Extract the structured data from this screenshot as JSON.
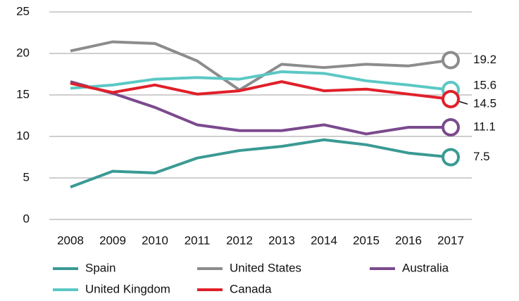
{
  "chart_data": {
    "type": "line",
    "categories": [
      "2008",
      "2009",
      "2010",
      "2011",
      "2012",
      "2013",
      "2014",
      "2015",
      "2016",
      "2017"
    ],
    "series": [
      {
        "name": "Spain",
        "color": "#3a9a94",
        "values": [
          3.9,
          5.8,
          5.6,
          7.4,
          8.3,
          8.8,
          9.6,
          9.0,
          8.0,
          7.5
        ]
      },
      {
        "name": "United States",
        "color": "#8c8c8c",
        "values": [
          20.3,
          21.4,
          21.2,
          19.1,
          15.6,
          18.7,
          18.3,
          18.7,
          18.5,
          19.2
        ]
      },
      {
        "name": "Australia",
        "color": "#7b4a8e",
        "values": [
          16.6,
          15.2,
          13.5,
          11.4,
          10.7,
          10.7,
          11.4,
          10.3,
          11.1,
          11.1
        ]
      },
      {
        "name": "United Kingdom",
        "color": "#5bc8c4",
        "values": [
          15.8,
          16.2,
          16.9,
          17.1,
          16.9,
          17.8,
          17.6,
          16.7,
          16.2,
          15.6
        ]
      },
      {
        "name": "Canada",
        "color": "#e0202a",
        "values": [
          16.4,
          15.3,
          16.2,
          15.1,
          15.5,
          16.6,
          15.5,
          15.7,
          15.1,
          14.5
        ]
      }
    ],
    "ylim": [
      0,
      25
    ],
    "yticks": [
      0,
      5,
      10,
      15,
      20,
      25
    ],
    "grid": true
  }
}
